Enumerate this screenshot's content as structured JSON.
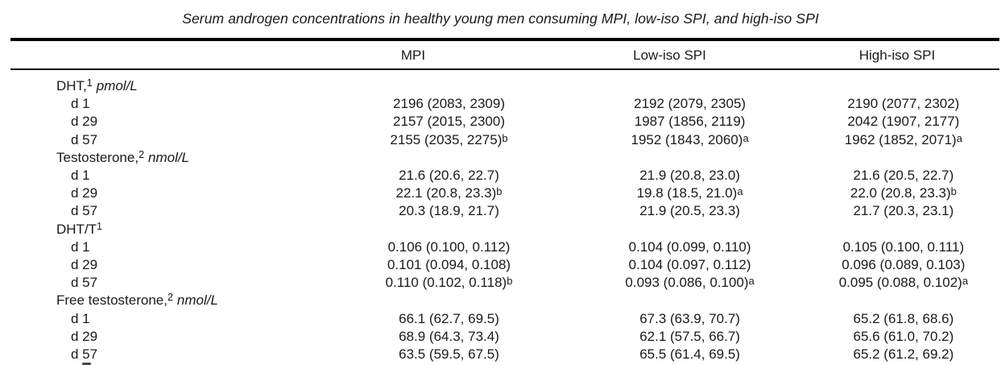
{
  "title": "Serum androgen concentrations in healthy young men consuming MPI, low-iso SPI, and high-iso SPI",
  "columns": [
    "MPI",
    "Low-iso SPI",
    "High-iso SPI"
  ],
  "sections": [
    {
      "name": "DHT,",
      "sup": "1",
      "unit": "pmol/L",
      "rows": [
        {
          "day": "d 1",
          "cells": [
            {
              "v": "2196 (2083, 2309)",
              "s": ""
            },
            {
              "v": "2192 (2079, 2305)",
              "s": ""
            },
            {
              "v": "2190 (2077, 2302)",
              "s": ""
            }
          ]
        },
        {
          "day": "d 29",
          "cells": [
            {
              "v": "2157 (2015, 2300)",
              "s": ""
            },
            {
              "v": "1987 (1856, 2119)",
              "s": ""
            },
            {
              "v": "2042 (1907, 2177)",
              "s": ""
            }
          ]
        },
        {
          "day": "d 57",
          "cells": [
            {
              "v": "2155 (2035, 2275)",
              "s": "b"
            },
            {
              "v": "1952 (1843, 2060)",
              "s": "a"
            },
            {
              "v": "1962 (1852, 2071)",
              "s": "a"
            }
          ]
        }
      ]
    },
    {
      "name": "Testosterone,",
      "sup": "2",
      "unit": "nmol/L",
      "rows": [
        {
          "day": "d 1",
          "cells": [
            {
              "v": "21.6 (20.6, 22.7)",
              "s": ""
            },
            {
              "v": "21.9 (20.8, 23.0)",
              "s": ""
            },
            {
              "v": "21.6 (20.5, 22.7)",
              "s": ""
            }
          ]
        },
        {
          "day": "d 29",
          "cells": [
            {
              "v": "22.1 (20.8, 23.3)",
              "s": "b"
            },
            {
              "v": "19.8 (18.5, 21.0)",
              "s": "a"
            },
            {
              "v": "22.0 (20.8, 23.3)",
              "s": "b"
            }
          ]
        },
        {
          "day": "d 57",
          "cells": [
            {
              "v": "20.3 (18.9, 21.7)",
              "s": ""
            },
            {
              "v": "21.9 (20.5, 23.3)",
              "s": ""
            },
            {
              "v": "21.7 (20.3, 23.1)",
              "s": ""
            }
          ]
        }
      ]
    },
    {
      "name": "DHT/T",
      "sup": "1",
      "unit": "",
      "rows": [
        {
          "day": "d 1",
          "cells": [
            {
              "v": "0.106 (0.100, 0.112)",
              "s": ""
            },
            {
              "v": "0.104 (0.099, 0.110)",
              "s": ""
            },
            {
              "v": "0.105 (0.100, 0.111)",
              "s": ""
            }
          ]
        },
        {
          "day": "d 29",
          "cells": [
            {
              "v": "0.101 (0.094, 0.108)",
              "s": ""
            },
            {
              "v": "0.104 (0.097, 0.112)",
              "s": ""
            },
            {
              "v": "0.096 (0.089, 0.103)",
              "s": ""
            }
          ]
        },
        {
          "day": "d 57",
          "cells": [
            {
              "v": "0.110 (0.102, 0.118)",
              "s": "b"
            },
            {
              "v": "0.093 (0.086, 0.100)",
              "s": "a"
            },
            {
              "v": "0.095 (0.088, 0.102)",
              "s": "a"
            }
          ]
        }
      ]
    },
    {
      "name": "Free testosterone,",
      "sup": "2",
      "unit": "nmol/L",
      "rows": [
        {
          "day": "d 1",
          "cells": [
            {
              "v": "66.1 (62.7, 69.5)",
              "s": ""
            },
            {
              "v": "67.3 (63.9, 70.7)",
              "s": ""
            },
            {
              "v": "65.2 (61.8, 68.6)",
              "s": ""
            }
          ]
        },
        {
          "day": "d 29",
          "cells": [
            {
              "v": "68.9 (64.3, 73.4)",
              "s": ""
            },
            {
              "v": "62.1 (57.5, 66.7)",
              "s": ""
            },
            {
              "v": "65.6 (61.0, 70.2)",
              "s": ""
            }
          ]
        },
        {
          "day": "d 57",
          "cells": [
            {
              "v": "63.5 (59.5, 67.5)",
              "s": ""
            },
            {
              "v": "65.5 (61.4, 69.5)",
              "s": ""
            },
            {
              "v": "65.2 (61.2, 69.2)",
              "s": ""
            }
          ]
        }
      ]
    }
  ]
}
